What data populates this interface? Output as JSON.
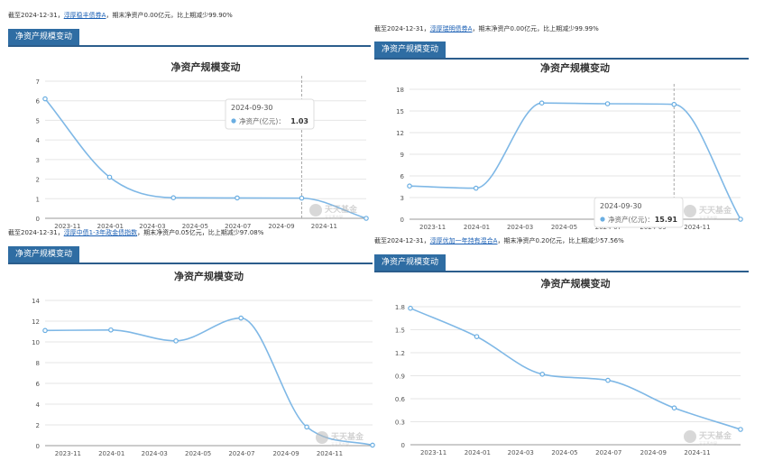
{
  "panels": [
    {
      "note": {
        "prefix": "截至2024-12-31，",
        "fund": "淳厚稳丰债券A",
        "suffix": "，期末净资产0.00亿元，比上期减少99.90%"
      },
      "tab": "净资产规模变动",
      "tooltip": {
        "date": "2024-09-30",
        "label": "净资产(亿元)：",
        "value": "1.03"
      }
    },
    {
      "note": {
        "prefix": "截至2024-12-31，",
        "fund": "淳厚瑞明债券A",
        "suffix": "，期末净资产0.00亿元，比上期减少99.99%"
      },
      "tab": "净资产规模变动",
      "tooltip": {
        "date": "2024-09-30",
        "label": "净资产(亿元)：",
        "value": "15.91"
      }
    },
    {
      "note": {
        "prefix": "截至2024-12-31，",
        "fund": "淳厚中债1-3年政金债指数",
        "suffix": "，期末净资产0.05亿元，比上期减少97.08%"
      },
      "tab": "净资产规模变动",
      "tooltip": null
    },
    {
      "note": {
        "prefix": "截至2024-12-31，",
        "fund": "淳厚优加一年持有混合A",
        "suffix": "，期末净资产0.20亿元，比上期减少57.56%"
      },
      "tab": "净资产规模变动",
      "tooltip": null
    }
  ],
  "watermark": {
    "line1": "天天基金",
    "line2": "天天基金网"
  },
  "colors": {
    "line": "#7fb8e6",
    "point": "#6aaee2",
    "grid": "#e6e6e6",
    "tab": "#2f6da3",
    "title": "#333333"
  },
  "chart_data": [
    {
      "type": "line",
      "title": "净资产规模变动",
      "x": [
        "2023-09-30",
        "2023-12-31",
        "2024-03-31",
        "2024-06-30",
        "2024-09-30",
        "2024-12-31"
      ],
      "series": [
        {
          "name": "净资产(亿元)",
          "values": [
            6.1,
            2.1,
            1.05,
            1.04,
            1.03,
            0.0
          ]
        }
      ],
      "xticks": [
        "2023-11",
        "2024-01",
        "2024-03",
        "2024-05",
        "2024-07",
        "2024-09",
        "2024-11"
      ],
      "yticks": [
        0,
        1,
        2,
        3,
        4,
        5,
        6,
        7
      ],
      "ylim": [
        0,
        7
      ],
      "xlim": [
        "2023-09-30",
        "2024-12-31"
      ],
      "crosshair_x": "2024-09-30",
      "grid": true
    },
    {
      "type": "line",
      "title": "净资产规模变动",
      "x": [
        "2023-09-30",
        "2023-12-31",
        "2024-03-31",
        "2024-06-30",
        "2024-09-30",
        "2024-12-31"
      ],
      "series": [
        {
          "name": "净资产(亿元)",
          "values": [
            4.6,
            4.3,
            16.1,
            16.0,
            15.91,
            0.0
          ]
        }
      ],
      "xticks": [
        "2023-11",
        "2024-01",
        "2024-03",
        "2024-05",
        "2024-07",
        "2024-09",
        "2024-11"
      ],
      "yticks": [
        0,
        3,
        6,
        9,
        12,
        15,
        18
      ],
      "ylim": [
        0,
        18
      ],
      "xlim": [
        "2023-09-30",
        "2024-12-31"
      ],
      "crosshair_x": "2024-09-30",
      "grid": true
    },
    {
      "type": "line",
      "title": "净资产规模变动",
      "x": [
        "2023-09-30",
        "2023-12-31",
        "2024-03-31",
        "2024-06-30",
        "2024-09-30",
        "2024-12-31"
      ],
      "series": [
        {
          "name": "净资产(亿元)",
          "values": [
            11.1,
            11.15,
            10.1,
            12.3,
            1.8,
            0.05
          ]
        }
      ],
      "xticks": [
        "2023-11",
        "2024-01",
        "2024-03",
        "2024-05",
        "2024-07",
        "2024-09",
        "2024-11"
      ],
      "yticks": [
        0,
        2,
        4,
        6,
        8,
        10,
        12,
        14
      ],
      "ylim": [
        0,
        14
      ],
      "xlim": [
        "2023-09-30",
        "2024-12-31"
      ],
      "crosshair_x": null,
      "grid": true
    },
    {
      "type": "line",
      "title": "净资产规模变动",
      "x": [
        "2023-09-30",
        "2023-12-31",
        "2024-03-31",
        "2024-06-30",
        "2024-09-30",
        "2024-12-31"
      ],
      "series": [
        {
          "name": "净资产(亿元)",
          "values": [
            1.78,
            1.41,
            0.92,
            0.84,
            0.48,
            0.2
          ]
        }
      ],
      "xticks": [
        "2023-11",
        "2024-01",
        "2024-03",
        "2024-05",
        "2024-07",
        "2024-09",
        "2024-11"
      ],
      "yticks": [
        0,
        0.3,
        0.6,
        0.9,
        1.2,
        1.5,
        1.8
      ],
      "ylim": [
        0,
        1.8
      ],
      "xlim": [
        "2023-09-30",
        "2024-12-31"
      ],
      "crosshair_x": null,
      "grid": true
    }
  ]
}
